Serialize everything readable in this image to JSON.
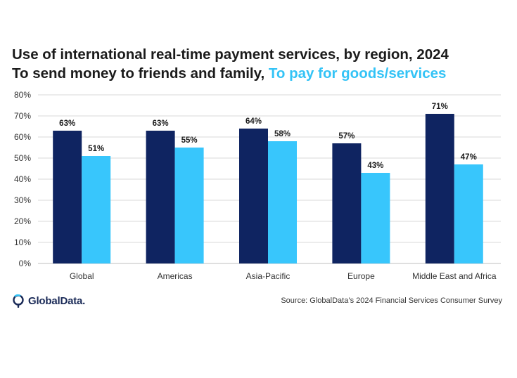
{
  "header": {
    "title": "Use of international real-time payment services, by region, 2024",
    "subtitle_series1": "To send money to friends and family,",
    "subtitle_series2": "To pay for goods/services"
  },
  "footer": {
    "logo_text": "GlobalData.",
    "source": "Source: GlobalData’s 2024 Financial Services Consumer Survey"
  },
  "colors": {
    "series1": "#0f2461",
    "series2": "#38c6fc",
    "gridline": "#d9d9d9",
    "logo": "#1a2a57"
  },
  "icons": {
    "logo": "globaldata-logo-icon"
  },
  "chart_data": {
    "type": "bar",
    "categories": [
      "Global",
      "Americas",
      "Asia-Pacific",
      "Europe",
      "Middle East and Africa"
    ],
    "series": [
      {
        "name": "To send money to friends and family",
        "values": [
          63,
          63,
          64,
          57,
          71
        ],
        "labels": [
          "63%",
          "63%",
          "64%",
          "57%",
          "71%"
        ]
      },
      {
        "name": "To pay for goods/services",
        "values": [
          51,
          55,
          58,
          43,
          47
        ],
        "labels": [
          "51%",
          "55%",
          "58%",
          "43%",
          "47%"
        ]
      }
    ],
    "ylim": [
      0,
      80
    ],
    "yticks": [
      0,
      10,
      20,
      30,
      40,
      50,
      60,
      70,
      80
    ],
    "ytick_labels": [
      "0%",
      "10%",
      "20%",
      "30%",
      "40%",
      "50%",
      "60%",
      "70%",
      "80%"
    ],
    "grid": true,
    "legend": "in subtitle"
  }
}
